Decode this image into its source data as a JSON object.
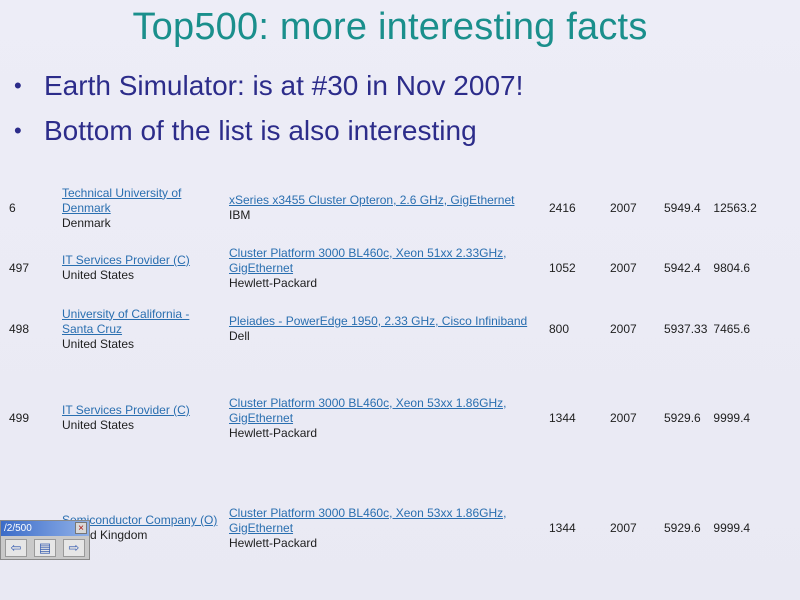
{
  "slide": {
    "title": "Top500: more interesting facts",
    "bullets": [
      "Earth Simulator: is at #30 in Nov 2007!",
      "Bottom of the list is also interesting"
    ],
    "bullet_glyph": "•"
  },
  "table": {
    "rows": [
      {
        "rank": "6",
        "site": "Technical University of Denmark",
        "country": "Denmark",
        "system": "xSeries x3455 Cluster Opteron, 2.6 GHz, GigEthernet",
        "vendor": "IBM",
        "processors": "2416",
        "year": "2007",
        "rmax": "5949.4",
        "rpeak": "12563.2"
      },
      {
        "rank": "497",
        "site": "IT Services Provider (C)",
        "country": "United States",
        "system": "Cluster Platform 3000 BL460c, Xeon 51xx 2.33GHz, GigEthernet",
        "vendor": "Hewlett-Packard",
        "processors": "1052",
        "year": "2007",
        "rmax": "5942.4",
        "rpeak": "9804.6"
      },
      {
        "rank": "498",
        "site": "University of California - Santa Cruz",
        "country": "United States",
        "system": "Pleiades - PowerEdge 1950, 2.33 GHz, Cisco Infiniband",
        "vendor": "Dell",
        "processors": "800",
        "year": "2007",
        "rmax": "5937.33",
        "rpeak": "7465.6"
      },
      {
        "rank": "499",
        "site": "IT Services Provider (C)",
        "country": "United States",
        "system": "Cluster Platform 3000 BL460c, Xeon 53xx 1.86GHz, GigEthernet",
        "vendor": "Hewlett-Packard",
        "processors": "1344",
        "year": "2007",
        "rmax": "5929.6",
        "rpeak": "9999.4"
      },
      {
        "rank": "",
        "site": "Semiconductor Company (O)",
        "country": "United Kingdom",
        "system": "Cluster Platform 3000 BL460c, Xeon 53xx 1.86GHz, GigEthernet",
        "vendor": "Hewlett-Packard",
        "processors": "1344",
        "year": "2007",
        "rmax": "5929.6",
        "rpeak": "9999.4"
      }
    ]
  },
  "viewer": {
    "title": "/2/500",
    "close_glyph": "×",
    "prev_glyph": "⇦",
    "menu_glyph": "▤",
    "next_glyph": "⇨"
  },
  "colors": {
    "title": "#1a8f8c",
    "bullets": "#2c2c8a",
    "link": "#2a6fb0",
    "background": "#ececf6"
  }
}
